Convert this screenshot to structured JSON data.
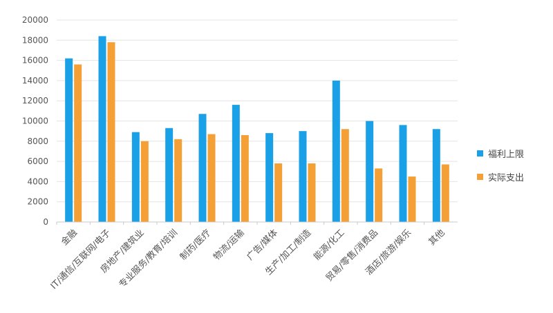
{
  "chart_data": {
    "type": "bar",
    "title": "",
    "xlabel": "",
    "ylabel": "",
    "ylim": [
      0,
      20000
    ],
    "yticks": [
      0,
      2000,
      4000,
      6000,
      8000,
      10000,
      12000,
      14000,
      16000,
      18000,
      20000
    ],
    "grid": true,
    "legend_position": "right",
    "categories": [
      "金融",
      "IT/通信/互联网/电子",
      "房地产/建筑业",
      "专业服务/教育/培训",
      "制药/医疗",
      "物流/运输",
      "广告/媒体",
      "生产/加工/制造",
      "能源/化工",
      "贸易/零售/消费品",
      "酒店/旅游/娱乐",
      "其他"
    ],
    "series": [
      {
        "name": "福利上限",
        "color": "#1aa0e6",
        "values": [
          16200,
          18400,
          8900,
          9300,
          10700,
          11600,
          8800,
          9000,
          14000,
          10000,
          9600,
          9200
        ]
      },
      {
        "name": "实际支出",
        "color": "#f5a036",
        "values": [
          15600,
          17800,
          8000,
          8200,
          8700,
          8600,
          5800,
          5800,
          9200,
          5300,
          4500,
          5700
        ]
      }
    ]
  }
}
